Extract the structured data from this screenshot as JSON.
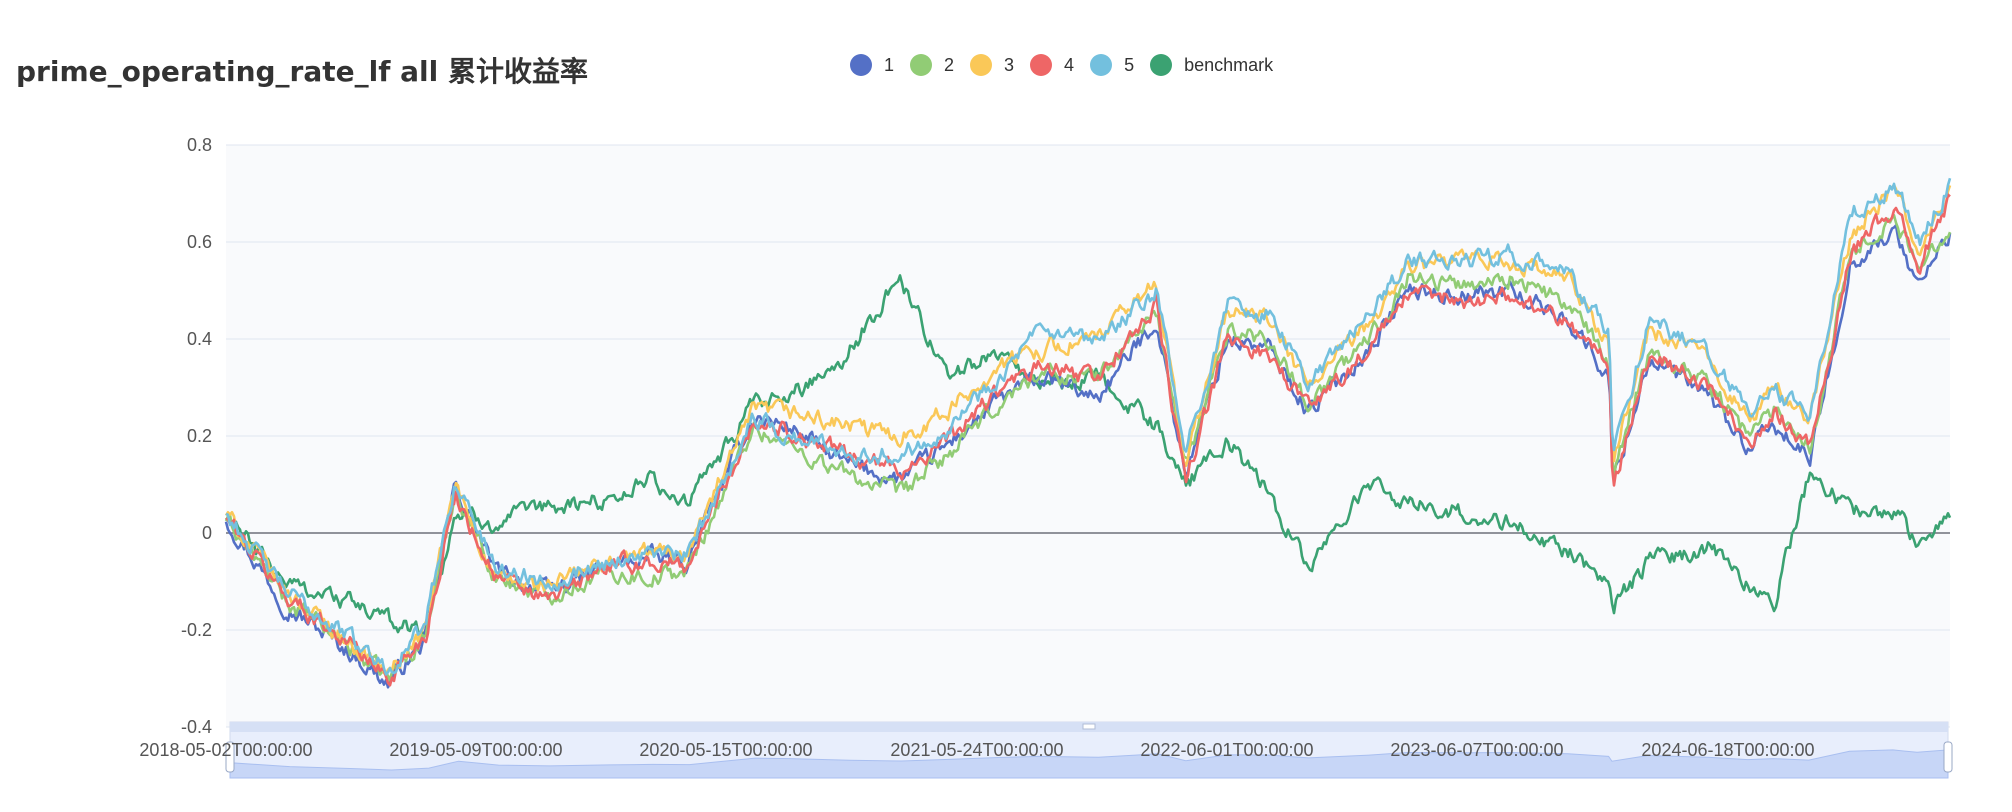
{
  "chart_data": {
    "type": "line",
    "title": "prime_operating_rate_lf all 累计收益率",
    "xlabel": "",
    "ylabel": "",
    "ylim": [
      -0.4,
      0.8
    ],
    "yticks": [
      0.8,
      0.6,
      0.4,
      0.2,
      0,
      -0.2,
      -0.4
    ],
    "ytick_labels": [
      "0.8",
      "0.6",
      "0.4",
      "0.2",
      "0",
      "-0.2",
      "-0.4"
    ],
    "x_range": [
      "2018-05-02",
      "2025-07-01"
    ],
    "xtick_labels": [
      "2018-05-02T00:00:00",
      "2019-05-09T00:00:00",
      "2020-05-15T00:00:00",
      "2021-05-24T00:00:00",
      "2022-06-01T00:00:00",
      "2023-06-07T00:00:00",
      "2024-06-18T00:00:00"
    ],
    "grid": true,
    "legend_position": "top-center",
    "x": [
      "2018-05-02",
      "2018-08-01",
      "2018-11-01",
      "2019-01-03",
      "2019-03-01",
      "2019-04-15",
      "2019-06-15",
      "2019-09-01",
      "2019-12-01",
      "2020-02-04",
      "2020-04-01",
      "2020-07-10",
      "2020-09-01",
      "2020-12-01",
      "2021-02-18",
      "2021-05-01",
      "2021-07-15",
      "2021-09-15",
      "2021-12-15",
      "2022-03-15",
      "2022-04-27",
      "2022-06-30",
      "2022-09-01",
      "2022-10-31",
      "2023-01-31",
      "2023-03-31",
      "2023-06-30",
      "2023-09-01",
      "2023-11-30",
      "2024-01-31",
      "2024-02-05",
      "2024-03-31",
      "2024-06-30",
      "2024-08-30",
      "2024-10-08",
      "2024-12-01",
      "2025-02-01",
      "2025-04-08",
      "2025-05-15",
      "2025-07-01"
    ],
    "series": [
      {
        "name": "1",
        "color": "#5470c6",
        "values": [
          0.03,
          -0.15,
          -0.24,
          -0.31,
          -0.22,
          0.1,
          -0.08,
          -0.12,
          -0.07,
          -0.05,
          -0.06,
          0.24,
          0.22,
          0.14,
          0.11,
          0.18,
          0.27,
          0.32,
          0.28,
          0.44,
          0.12,
          0.4,
          0.38,
          0.25,
          0.38,
          0.5,
          0.49,
          0.5,
          0.44,
          0.32,
          0.1,
          0.36,
          0.28,
          0.17,
          0.22,
          0.15,
          0.56,
          0.62,
          0.51,
          0.62
        ]
      },
      {
        "name": "2",
        "color": "#91cc75",
        "values": [
          0.03,
          -0.14,
          -0.23,
          -0.3,
          -0.21,
          0.09,
          -0.09,
          -0.13,
          -0.08,
          -0.09,
          -0.08,
          0.22,
          0.18,
          0.12,
          0.08,
          0.16,
          0.26,
          0.33,
          0.32,
          0.46,
          0.13,
          0.42,
          0.4,
          0.27,
          0.4,
          0.53,
          0.51,
          0.53,
          0.47,
          0.35,
          0.12,
          0.38,
          0.31,
          0.2,
          0.26,
          0.18,
          0.58,
          0.65,
          0.54,
          0.64
        ]
      },
      {
        "name": "3",
        "color": "#fac858",
        "values": [
          0.04,
          -0.12,
          -0.22,
          -0.29,
          -0.2,
          0.1,
          -0.1,
          -0.11,
          -0.06,
          -0.04,
          -0.04,
          0.25,
          0.25,
          0.22,
          0.2,
          0.25,
          0.34,
          0.38,
          0.4,
          0.52,
          0.14,
          0.46,
          0.44,
          0.3,
          0.43,
          0.55,
          0.56,
          0.56,
          0.52,
          0.39,
          0.14,
          0.42,
          0.36,
          0.23,
          0.3,
          0.24,
          0.62,
          0.71,
          0.58,
          0.7
        ]
      },
      {
        "name": "4",
        "color": "#ee6666",
        "values": [
          0.03,
          -0.13,
          -0.22,
          -0.3,
          -0.21,
          0.08,
          -0.09,
          -0.14,
          -0.07,
          -0.06,
          -0.07,
          0.23,
          0.21,
          0.16,
          0.13,
          0.19,
          0.29,
          0.34,
          0.32,
          0.47,
          0.1,
          0.4,
          0.37,
          0.26,
          0.38,
          0.49,
          0.48,
          0.49,
          0.44,
          0.34,
          0.09,
          0.37,
          0.3,
          0.19,
          0.25,
          0.18,
          0.58,
          0.67,
          0.55,
          0.69
        ]
      },
      {
        "name": "5",
        "color": "#73c0de",
        "values": [
          0.04,
          -0.12,
          -0.21,
          -0.28,
          -0.19,
          0.11,
          -0.07,
          -0.1,
          -0.06,
          -0.04,
          -0.05,
          0.24,
          0.2,
          0.17,
          0.16,
          0.22,
          0.32,
          0.41,
          0.39,
          0.5,
          0.16,
          0.47,
          0.45,
          0.31,
          0.45,
          0.56,
          0.56,
          0.58,
          0.53,
          0.41,
          0.15,
          0.44,
          0.37,
          0.25,
          0.29,
          0.24,
          0.66,
          0.72,
          0.6,
          0.72
        ]
      },
      {
        "name": "benchmark",
        "color": "#3ba272",
        "values": [
          0.03,
          -0.1,
          -0.14,
          -0.18,
          -0.2,
          0.04,
          0.02,
          0.05,
          0.07,
          0.11,
          0.06,
          0.26,
          0.28,
          0.37,
          0.53,
          0.32,
          0.38,
          0.3,
          0.32,
          0.22,
          0.1,
          0.19,
          0.08,
          -0.07,
          0.1,
          0.06,
          0.04,
          0.02,
          -0.04,
          -0.1,
          -0.15,
          -0.06,
          -0.03,
          -0.1,
          -0.14,
          0.13,
          0.04,
          0.05,
          -0.03,
          0.03
        ]
      }
    ]
  }
}
